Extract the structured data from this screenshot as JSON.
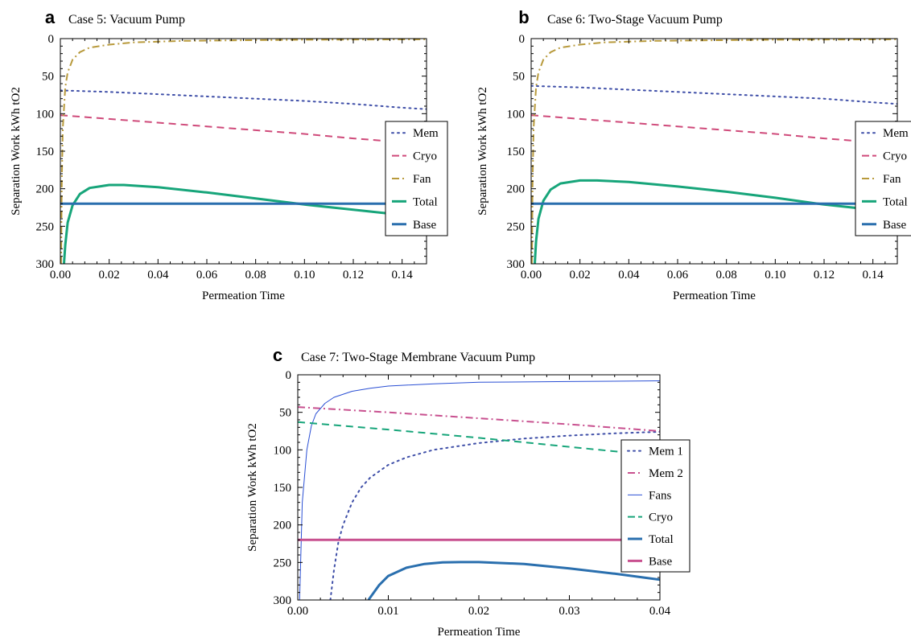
{
  "chart_data": [
    {
      "id": "a",
      "type": "line",
      "panel_letter": "a",
      "title": "Case 5: Vacuum Pump",
      "xlabel": "Permeation Time",
      "ylabel": "Separation Work kWh tO2",
      "xlim": [
        0,
        0.15
      ],
      "ylim": [
        0,
        300
      ],
      "y_inverted": true,
      "x_ticks": [
        0,
        0.02,
        0.04,
        0.06,
        0.08,
        0.1,
        0.12,
        0.14
      ],
      "x_tick_labels": [
        "0.00",
        "0.02",
        "0.04",
        "0.06",
        "0.08",
        "0.10",
        "0.12",
        "0.14"
      ],
      "y_ticks": [
        0,
        50,
        100,
        150,
        200,
        250,
        300
      ],
      "y_tick_labels": [
        "0",
        "50",
        "100",
        "150",
        "200",
        "250",
        "300"
      ],
      "legend_position": "right",
      "series": [
        {
          "name": "Mem",
          "color": "#3f4fa8",
          "dash": "dotted",
          "width": 2,
          "x": [
            0,
            0.02,
            0.04,
            0.06,
            0.08,
            0.1,
            0.12,
            0.14,
            0.15
          ],
          "y": [
            69,
            71,
            74,
            77,
            80,
            83,
            87,
            92,
            94
          ]
        },
        {
          "name": "Cryo",
          "color": "#cf4a7a",
          "dash": "dashed",
          "width": 2,
          "x": [
            0,
            0.02,
            0.04,
            0.06,
            0.08,
            0.1,
            0.12,
            0.14,
            0.15
          ],
          "y": [
            102,
            107,
            112,
            117,
            122,
            127,
            133,
            138,
            141
          ]
        },
        {
          "name": "Fan",
          "color": "#b89a3c",
          "dash": "dashdot",
          "width": 2,
          "x": [
            0.0003,
            0.0006,
            0.001,
            0.002,
            0.003,
            0.005,
            0.008,
            0.012,
            0.02,
            0.03,
            0.05,
            0.08,
            0.1,
            0.15
          ],
          "y": [
            300,
            190,
            120,
            65,
            45,
            28,
            18,
            12,
            8,
            5,
            3,
            2,
            1.5,
            1
          ]
        },
        {
          "name": "Total",
          "color": "#17a57a",
          "dash": "solid",
          "width": 3,
          "x": [
            0.0015,
            0.002,
            0.003,
            0.005,
            0.008,
            0.012,
            0.02,
            0.026,
            0.04,
            0.06,
            0.08,
            0.1,
            0.12,
            0.14,
            0.15
          ],
          "y": [
            300,
            275,
            245,
            222,
            207,
            199,
            195,
            195,
            198,
            205,
            213,
            221,
            228,
            235,
            239
          ]
        },
        {
          "name": "Base",
          "color": "#2a6fae",
          "dash": "solid",
          "width": 3,
          "x": [
            0,
            0.15
          ],
          "y": [
            220,
            220
          ]
        }
      ]
    },
    {
      "id": "b",
      "type": "line",
      "panel_letter": "b",
      "title": "Case 6: Two-Stage Vacuum Pump",
      "xlabel": "Permeation Time",
      "ylabel": "Separation Work kWh tO2",
      "xlim": [
        0,
        0.15
      ],
      "ylim": [
        0,
        300
      ],
      "y_inverted": true,
      "x_ticks": [
        0,
        0.02,
        0.04,
        0.06,
        0.08,
        0.1,
        0.12,
        0.14
      ],
      "x_tick_labels": [
        "0.00",
        "0.02",
        "0.04",
        "0.06",
        "0.08",
        "0.10",
        "0.12",
        "0.14"
      ],
      "y_ticks": [
        0,
        50,
        100,
        150,
        200,
        250,
        300
      ],
      "y_tick_labels": [
        "0",
        "50",
        "100",
        "150",
        "200",
        "250",
        "300"
      ],
      "legend_position": "right",
      "series": [
        {
          "name": "Mem",
          "color": "#3f4fa8",
          "dash": "dotted",
          "width": 2,
          "x": [
            0,
            0.02,
            0.04,
            0.06,
            0.08,
            0.1,
            0.12,
            0.14,
            0.15
          ],
          "y": [
            63,
            65,
            68,
            71,
            74,
            77,
            80,
            85,
            87
          ]
        },
        {
          "name": "Cryo",
          "color": "#cf4a7a",
          "dash": "dashed",
          "width": 2,
          "x": [
            0,
            0.02,
            0.04,
            0.06,
            0.08,
            0.1,
            0.12,
            0.14,
            0.15
          ],
          "y": [
            102,
            107,
            112,
            117,
            122,
            127,
            133,
            138,
            141
          ]
        },
        {
          "name": "Fan",
          "color": "#b89a3c",
          "dash": "dashdot",
          "width": 2,
          "x": [
            0.0003,
            0.0006,
            0.001,
            0.002,
            0.003,
            0.005,
            0.008,
            0.012,
            0.02,
            0.03,
            0.05,
            0.08,
            0.1,
            0.15
          ],
          "y": [
            300,
            190,
            120,
            65,
            45,
            28,
            18,
            12,
            8,
            5,
            3,
            2,
            1.5,
            1
          ]
        },
        {
          "name": "Total",
          "color": "#17a57a",
          "dash": "solid",
          "width": 3,
          "x": [
            0.0015,
            0.002,
            0.003,
            0.005,
            0.008,
            0.012,
            0.02,
            0.027,
            0.04,
            0.06,
            0.08,
            0.1,
            0.12,
            0.14,
            0.15
          ],
          "y": [
            300,
            270,
            240,
            216,
            201,
            193,
            189,
            189,
            191,
            197,
            204,
            212,
            221,
            228,
            231
          ]
        },
        {
          "name": "Base",
          "color": "#2a6fae",
          "dash": "solid",
          "width": 3,
          "x": [
            0,
            0.15
          ],
          "y": [
            220,
            220
          ]
        }
      ]
    },
    {
      "id": "c",
      "type": "line",
      "panel_letter": "c",
      "title": "Case 7: Two-Stage Membrane Vacuum Pump",
      "xlabel": "Permeation Time",
      "ylabel": "Separation Work kWh tO2",
      "xlim": [
        0,
        0.04
      ],
      "ylim": [
        0,
        300
      ],
      "y_inverted": true,
      "x_ticks": [
        0,
        0.01,
        0.02,
        0.03,
        0.04
      ],
      "x_tick_labels": [
        "0.00",
        "0.01",
        "0.02",
        "0.03",
        "0.04"
      ],
      "y_ticks": [
        0,
        50,
        100,
        150,
        200,
        250,
        300
      ],
      "y_tick_labels": [
        "0",
        "50",
        "100",
        "150",
        "200",
        "250",
        "300"
      ],
      "legend_position": "right",
      "series": [
        {
          "name": "Mem 1",
          "color": "#3f4fa8",
          "dash": "dotted",
          "width": 2,
          "x": [
            0.0036,
            0.004,
            0.0045,
            0.005,
            0.006,
            0.007,
            0.008,
            0.01,
            0.012,
            0.015,
            0.02,
            0.025,
            0.03,
            0.035,
            0.04
          ],
          "y": [
            300,
            260,
            222,
            200,
            170,
            150,
            137,
            120,
            110,
            100,
            91,
            85,
            81,
            78,
            76
          ]
        },
        {
          "name": "Mem 2",
          "color": "#c8508f",
          "dash": "dashdot",
          "width": 2,
          "x": [
            0,
            0.01,
            0.02,
            0.03,
            0.04
          ],
          "y": [
            43,
            50,
            58,
            66,
            75
          ]
        },
        {
          "name": "Fans",
          "color": "#2a4fd4",
          "dash": "solid",
          "width": 1,
          "x": [
            0.0002,
            0.0005,
            0.001,
            0.0015,
            0.002,
            0.003,
            0.004,
            0.006,
            0.008,
            0.01,
            0.015,
            0.02,
            0.03,
            0.04
          ],
          "y": [
            300,
            170,
            100,
            68,
            52,
            38,
            30,
            22,
            18,
            15,
            12,
            10,
            9,
            8
          ]
        },
        {
          "name": "Cryo",
          "color": "#17a57a",
          "dash": "dashed",
          "width": 2,
          "x": [
            0,
            0.01,
            0.02,
            0.03,
            0.04
          ],
          "y": [
            63,
            73,
            84,
            96,
            108
          ]
        },
        {
          "name": "Total",
          "color": "#2a6fae",
          "dash": "solid",
          "width": 3,
          "x": [
            0.0078,
            0.009,
            0.01,
            0.012,
            0.014,
            0.016,
            0.018,
            0.02,
            0.025,
            0.03,
            0.035,
            0.04
          ],
          "y": [
            300,
            280,
            268,
            257,
            252,
            250,
            249.5,
            249.5,
            252,
            258,
            265,
            273
          ]
        },
        {
          "name": "Base",
          "color": "#c8508f",
          "dash": "solid",
          "width": 3,
          "x": [
            0,
            0.04
          ],
          "y": [
            220,
            220
          ]
        }
      ]
    }
  ]
}
